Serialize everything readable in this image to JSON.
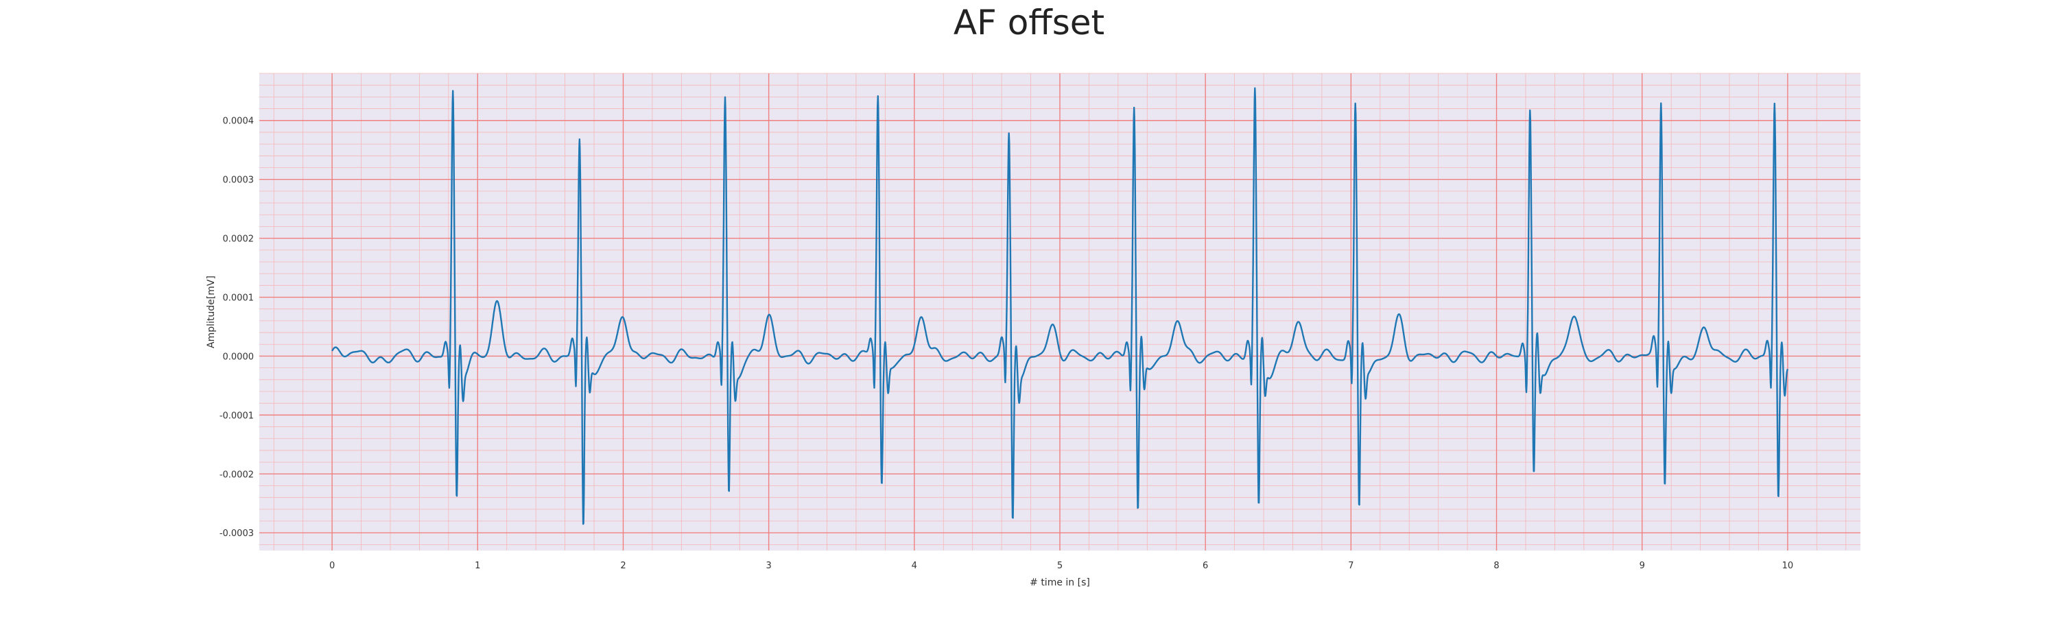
{
  "chart_data": {
    "type": "line",
    "title": "AF offset",
    "xlabel": "# time in [s]",
    "ylabel": "Amplitude[mV]",
    "xlim": [
      -0.5,
      10.5
    ],
    "ylim": [
      -0.00033,
      0.00048
    ],
    "xticks": [
      0,
      1,
      2,
      3,
      4,
      5,
      6,
      7,
      8,
      9,
      10
    ],
    "xtick_labels": [
      "0",
      "1",
      "2",
      "3",
      "4",
      "5",
      "6",
      "7",
      "8",
      "9",
      "10"
    ],
    "yticks": [
      -0.0003,
      -0.0002,
      -0.0001,
      0.0,
      0.0001,
      0.0002,
      0.0003,
      0.0004
    ],
    "ytick_labels": [
      "-0.0003",
      "-0.0002",
      "-0.0001",
      "0.0000",
      "0.0001",
      "0.0002",
      "0.0003",
      "0.0004"
    ],
    "grid": true,
    "background": "#eae7f2",
    "major_grid_color": "#f08080",
    "minor_grid_color": "#f5b7b7",
    "line_color": "#1f77b4",
    "beats": [
      {
        "t": 0.83,
        "r": 0.00045,
        "s": -0.00024,
        "t_wave": 9e-05
      },
      {
        "t": 1.7,
        "r": 0.00037,
        "s": -0.00029,
        "t_wave": 7e-05
      },
      {
        "t": 2.7,
        "r": 0.00043,
        "s": -0.00024,
        "t_wave": 7e-05
      },
      {
        "t": 3.75,
        "r": 0.00045,
        "s": -0.00021,
        "t_wave": 7e-05
      },
      {
        "t": 4.65,
        "r": 0.00037,
        "s": -0.00028,
        "t_wave": 5e-05
      },
      {
        "t": 5.51,
        "r": 0.00043,
        "s": -0.00026,
        "t_wave": 6e-05
      },
      {
        "t": 6.34,
        "r": 0.00045,
        "s": -0.00026,
        "t_wave": 6e-05
      },
      {
        "t": 7.03,
        "r": 0.00042,
        "s": -0.00026,
        "t_wave": 6e-05
      },
      {
        "t": 8.23,
        "r": 0.00042,
        "s": -0.00021,
        "t_wave": 7e-05
      },
      {
        "t": 9.13,
        "r": 0.00044,
        "s": -0.00021,
        "t_wave": 5e-05
      },
      {
        "t": 9.91,
        "r": 0.00043,
        "s": -0.00024,
        "t_wave": 3e-05
      }
    ],
    "series": [
      {
        "x_start": 0.0,
        "x_end": 10.0
      }
    ]
  }
}
